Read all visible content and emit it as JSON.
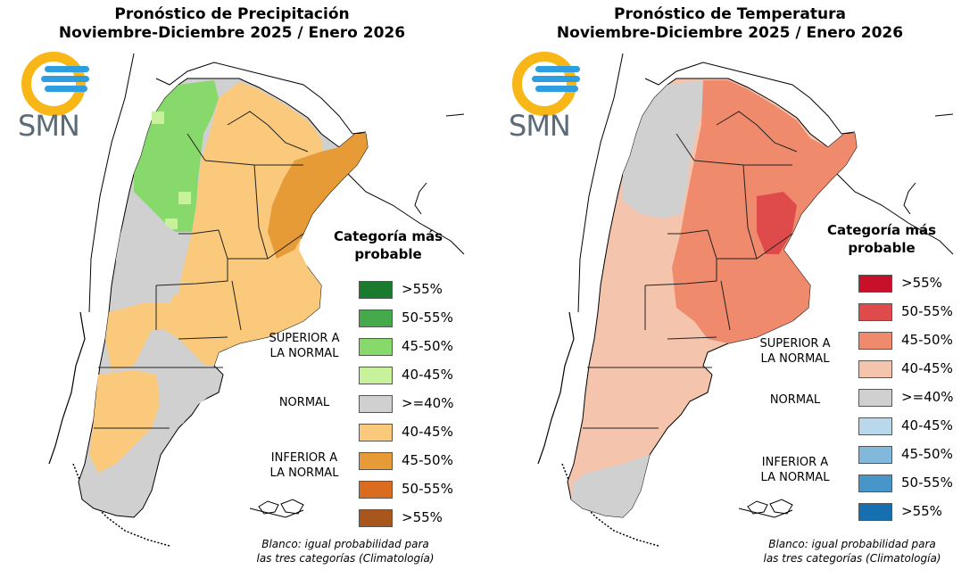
{
  "panels": [
    {
      "id": "precip",
      "title_line1": "Pronóstico de Precipitación",
      "title_line2": "Noviembre-Diciembre 2025 / Enero 2026",
      "logo_text": "SMN",
      "legend_title_line1": "Categoría más",
      "legend_title_line2": "probable",
      "legend_items": [
        {
          "label": ">55%",
          "color": "#1a7a2e"
        },
        {
          "label": "50-55%",
          "color": "#44aa4c"
        },
        {
          "label": "45-50%",
          "color": "#86d96a"
        },
        {
          "label": "40-45%",
          "color": "#c7f29b"
        },
        {
          "label": ">=40%",
          "color": "#d0d0d0"
        },
        {
          "label": "40-45%",
          "color": "#fbc97b"
        },
        {
          "label": "45-50%",
          "color": "#e79b36"
        },
        {
          "label": "50-55%",
          "color": "#d96c1f"
        },
        {
          "label": ">55%",
          "color": "#a8561c"
        }
      ],
      "category_labels": {
        "superior": [
          "SUPERIOR A",
          "LA NORMAL"
        ],
        "normal": "NORMAL",
        "inferior": [
          "INFERIOR A",
          "LA NORMAL"
        ]
      },
      "note_line1": "Blanco: igual probabilidad para",
      "note_line2": "las tres categorías (Climatología)"
    },
    {
      "id": "temp",
      "title_line1": "Pronóstico de Temperatura",
      "title_line2": "Noviembre-Diciembre 2025 / Enero 2026",
      "logo_text": "SMN",
      "legend_title_line1": "Categoría más",
      "legend_title_line2": "probable",
      "legend_items": [
        {
          "label": ">55%",
          "color": "#c9102a"
        },
        {
          "label": "50-55%",
          "color": "#df4b4a"
        },
        {
          "label": "45-50%",
          "color": "#ef8a6c"
        },
        {
          "label": "40-45%",
          "color": "#f4c4ad"
        },
        {
          "label": ">=40%",
          "color": "#d0d0d0"
        },
        {
          "label": "40-45%",
          "color": "#b9d8ec"
        },
        {
          "label": "45-50%",
          "color": "#82b8dc"
        },
        {
          "label": "50-55%",
          "color": "#4795c9"
        },
        {
          "label": ">55%",
          "color": "#1670b0"
        }
      ],
      "category_labels": {
        "superior": [
          "SUPERIOR A",
          "LA NORMAL"
        ],
        "normal": "NORMAL",
        "inferior": [
          "INFERIOR A",
          "LA NORMAL"
        ]
      },
      "note_line1": "Blanco: igual probabilidad para",
      "note_line2": "las tres categorías (Climatología)"
    }
  ]
}
